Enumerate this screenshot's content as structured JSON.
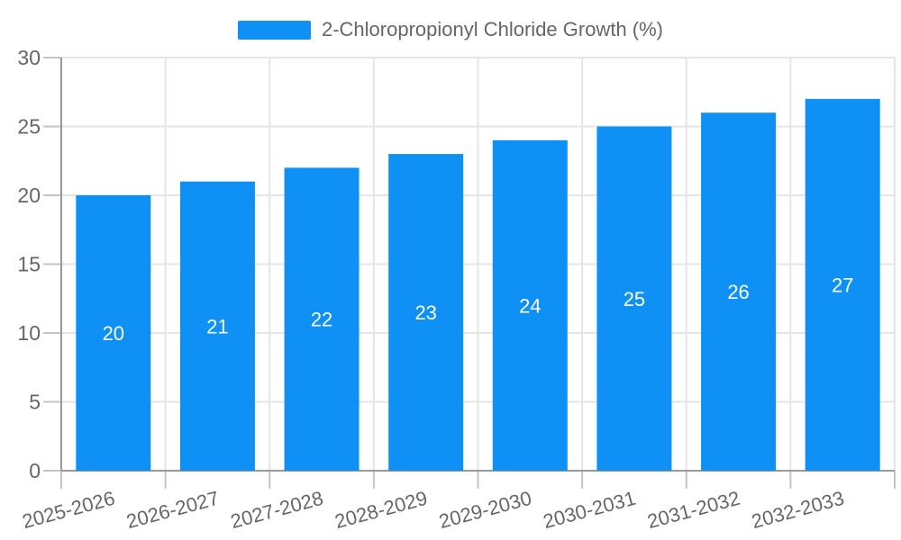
{
  "legend": {
    "label": "2-Chloropropionyl Chloride Growth (%)"
  },
  "chart_data": {
    "type": "bar",
    "title": "2-Chloropropionyl Chloride Growth (%)",
    "categories": [
      "2025-2026",
      "2026-2027",
      "2027-2028",
      "2028-2029",
      "2029-2030",
      "2030-2031",
      "2031-2032",
      "2032-2033"
    ],
    "series": [
      {
        "name": "2-Chloropropionyl Chloride Growth (%)",
        "values": [
          20,
          21,
          22,
          23,
          24,
          25,
          26,
          27
        ]
      }
    ],
    "bar_value_labels": [
      "20",
      "21",
      "22",
      "23",
      "24",
      "25",
      "26",
      "27"
    ],
    "xlabel": "",
    "ylabel": "",
    "ylim": [
      0,
      30
    ],
    "yticks": [
      0,
      5,
      10,
      15,
      20,
      25,
      30
    ],
    "grid": true,
    "legend_position": "top-center",
    "x_label_rotation_deg": -15,
    "colors": {
      "bar": "#0e90f5",
      "bar_label": "#ffffff",
      "axis_line": "#999999",
      "tick": "#c4c4c4",
      "gridline": "#e5e5e5",
      "label_text": "#666666",
      "background": "#ffffff"
    }
  }
}
